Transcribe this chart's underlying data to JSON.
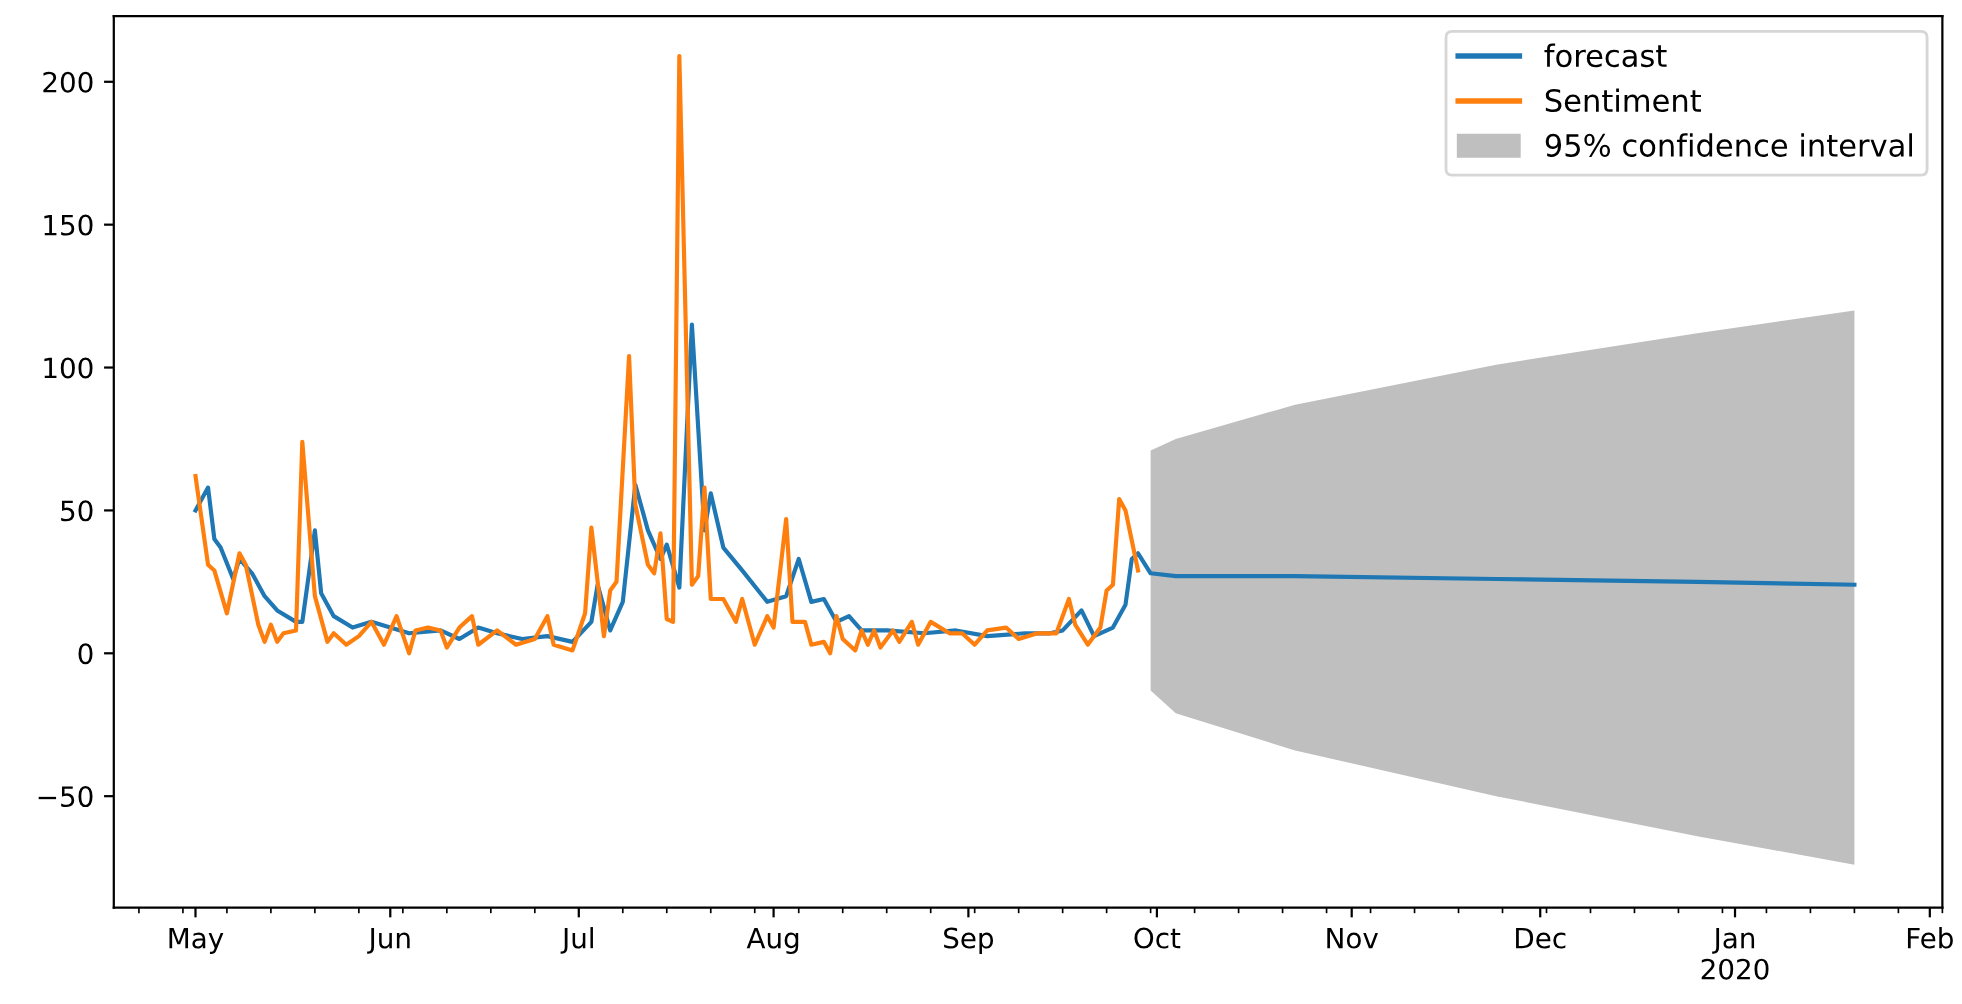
{
  "chart_data": {
    "type": "line",
    "series": [
      {
        "name": "forecast",
        "color": "#1f77b4",
        "x": [
          "2019-05-01",
          "2019-05-03",
          "2019-05-04",
          "2019-05-05",
          "2019-05-07",
          "2019-05-08",
          "2019-05-10",
          "2019-05-12",
          "2019-05-14",
          "2019-05-17",
          "2019-05-18",
          "2019-05-20",
          "2019-05-21",
          "2019-05-23",
          "2019-05-26",
          "2019-05-29",
          "2019-06-01",
          "2019-06-04",
          "2019-06-09",
          "2019-06-12",
          "2019-06-15",
          "2019-06-18",
          "2019-06-22",
          "2019-06-26",
          "2019-06-30",
          "2019-07-03",
          "2019-07-04",
          "2019-07-06",
          "2019-07-08",
          "2019-07-10",
          "2019-07-12",
          "2019-07-14",
          "2019-07-15",
          "2019-07-17",
          "2019-07-19",
          "2019-07-21",
          "2019-07-22",
          "2019-07-24",
          "2019-07-27",
          "2019-07-31",
          "2019-08-03",
          "2019-08-05",
          "2019-08-07",
          "2019-08-09",
          "2019-08-11",
          "2019-08-13",
          "2019-08-15",
          "2019-08-19",
          "2019-08-25",
          "2019-08-30",
          "2019-09-04",
          "2019-09-10",
          "2019-09-14",
          "2019-09-16",
          "2019-09-19",
          "2019-09-21",
          "2019-09-24",
          "2019-09-26",
          "2019-09-27",
          "2019-09-28",
          "2019-09-30",
          "2019-10-04",
          "2019-10-23",
          "2019-11-24",
          "2019-12-26",
          "2020-01-20"
        ],
        "values": [
          50,
          58,
          40,
          37,
          26,
          33,
          28,
          20,
          15,
          11,
          11,
          43,
          21,
          13,
          9,
          11,
          9,
          7,
          8,
          5,
          9,
          7,
          5,
          6,
          4,
          11,
          24,
          8,
          18,
          59,
          43,
          33,
          38,
          23,
          115,
          43,
          56,
          37,
          29,
          18,
          20,
          33,
          18,
          19,
          11,
          13,
          8,
          8,
          7,
          8,
          6,
          7,
          7,
          8,
          15,
          6,
          9,
          17,
          33,
          35,
          28,
          27,
          27,
          26,
          25,
          24
        ],
        "lower": [
          null,
          null,
          null,
          null,
          null,
          null,
          null,
          null,
          null,
          null,
          null,
          null,
          null,
          null,
          null,
          null,
          null,
          null,
          null,
          null,
          null,
          null,
          null,
          null,
          null,
          null,
          null,
          null,
          null,
          null,
          null,
          null,
          null,
          null,
          null,
          null,
          null,
          null,
          null,
          null,
          null,
          null,
          null,
          null,
          null,
          null,
          null,
          null,
          null,
          null,
          null,
          null,
          null,
          null,
          null,
          null,
          null,
          null,
          null,
          null,
          -13,
          -21,
          -34,
          -50,
          -64,
          -74
        ],
        "upper": [
          null,
          null,
          null,
          null,
          null,
          null,
          null,
          null,
          null,
          null,
          null,
          null,
          null,
          null,
          null,
          null,
          null,
          null,
          null,
          null,
          null,
          null,
          null,
          null,
          null,
          null,
          null,
          null,
          null,
          null,
          null,
          null,
          null,
          null,
          null,
          null,
          null,
          null,
          null,
          null,
          null,
          null,
          null,
          null,
          null,
          null,
          null,
          null,
          null,
          null,
          null,
          null,
          null,
          null,
          null,
          null,
          null,
          null,
          null,
          null,
          71,
          75,
          87,
          101,
          112,
          120
        ]
      },
      {
        "name": "Sentiment",
        "color": "#ff7f0e",
        "x": [
          "2019-05-01",
          "2019-05-03",
          "2019-05-04",
          "2019-05-06",
          "2019-05-08",
          "2019-05-09",
          "2019-05-11",
          "2019-05-12",
          "2019-05-13",
          "2019-05-14",
          "2019-05-15",
          "2019-05-17",
          "2019-05-18",
          "2019-05-20",
          "2019-05-22",
          "2019-05-23",
          "2019-05-25",
          "2019-05-27",
          "2019-05-29",
          "2019-05-31",
          "2019-06-02",
          "2019-06-04",
          "2019-06-05",
          "2019-06-07",
          "2019-06-09",
          "2019-06-10",
          "2019-06-12",
          "2019-06-14",
          "2019-06-15",
          "2019-06-18",
          "2019-06-21",
          "2019-06-24",
          "2019-06-26",
          "2019-06-27",
          "2019-06-30",
          "2019-07-02",
          "2019-07-03",
          "2019-07-05",
          "2019-07-06",
          "2019-07-07",
          "2019-07-09",
          "2019-07-10",
          "2019-07-12",
          "2019-07-13",
          "2019-07-14",
          "2019-07-15",
          "2019-07-16",
          "2019-07-17",
          "2019-07-19",
          "2019-07-20",
          "2019-07-21",
          "2019-07-22",
          "2019-07-24",
          "2019-07-26",
          "2019-07-27",
          "2019-07-29",
          "2019-07-31",
          "2019-08-01",
          "2019-08-03",
          "2019-08-04",
          "2019-08-06",
          "2019-08-07",
          "2019-08-09",
          "2019-08-10",
          "2019-08-11",
          "2019-08-12",
          "2019-08-14",
          "2019-08-15",
          "2019-08-16",
          "2019-08-17",
          "2019-08-18",
          "2019-08-20",
          "2019-08-21",
          "2019-08-23",
          "2019-08-24",
          "2019-08-26",
          "2019-08-29",
          "2019-08-31",
          "2019-09-02",
          "2019-09-04",
          "2019-09-07",
          "2019-09-09",
          "2019-09-12",
          "2019-09-15",
          "2019-09-17",
          "2019-09-18",
          "2019-09-20",
          "2019-09-22",
          "2019-09-23",
          "2019-09-24",
          "2019-09-25",
          "2019-09-26",
          "2019-09-28"
        ],
        "values": [
          62,
          31,
          29,
          14,
          35,
          31,
          10,
          4,
          10,
          4,
          7,
          8,
          74,
          20,
          4,
          7,
          3,
          6,
          11,
          3,
          13,
          0,
          8,
          9,
          8,
          2,
          9,
          13,
          3,
          8,
          3,
          5,
          13,
          3,
          1,
          14,
          44,
          6,
          22,
          25,
          104,
          52,
          31,
          28,
          42,
          12,
          11,
          209,
          24,
          27,
          58,
          19,
          19,
          11,
          19,
          3,
          13,
          9,
          47,
          11,
          11,
          3,
          4,
          0,
          13,
          5,
          1,
          8,
          3,
          8,
          2,
          8,
          4,
          11,
          3,
          11,
          7,
          7,
          3,
          8,
          9,
          5,
          7,
          7,
          19,
          10,
          3,
          9,
          22,
          24,
          54,
          50,
          29
        ]
      }
    ],
    "annotations": [
      "95% confidence interval"
    ],
    "xlim": [
      "2019-04-18",
      "2020-02-03"
    ],
    "xticks": [
      {
        "value": "2019-05-01",
        "label": "May"
      },
      {
        "value": "2019-06-01",
        "label": "Jun"
      },
      {
        "value": "2019-07-01",
        "label": "Jul"
      },
      {
        "value": "2019-08-01",
        "label": "Aug"
      },
      {
        "value": "2019-09-01",
        "label": "Sep"
      },
      {
        "value": "2019-10-01",
        "label": "Oct"
      },
      {
        "value": "2019-11-01",
        "label": "Nov"
      },
      {
        "value": "2019-12-01",
        "label": "Dec"
      },
      {
        "value": "2020-01-01",
        "label": "Jan\n2020"
      },
      {
        "value": "2020-02-01",
        "label": "Feb"
      }
    ],
    "ylim": [
      -89,
      223
    ],
    "yticks": [
      {
        "value": -50,
        "label": "−50"
      },
      0,
      50,
      100,
      150,
      200
    ],
    "legend": "top right"
  }
}
